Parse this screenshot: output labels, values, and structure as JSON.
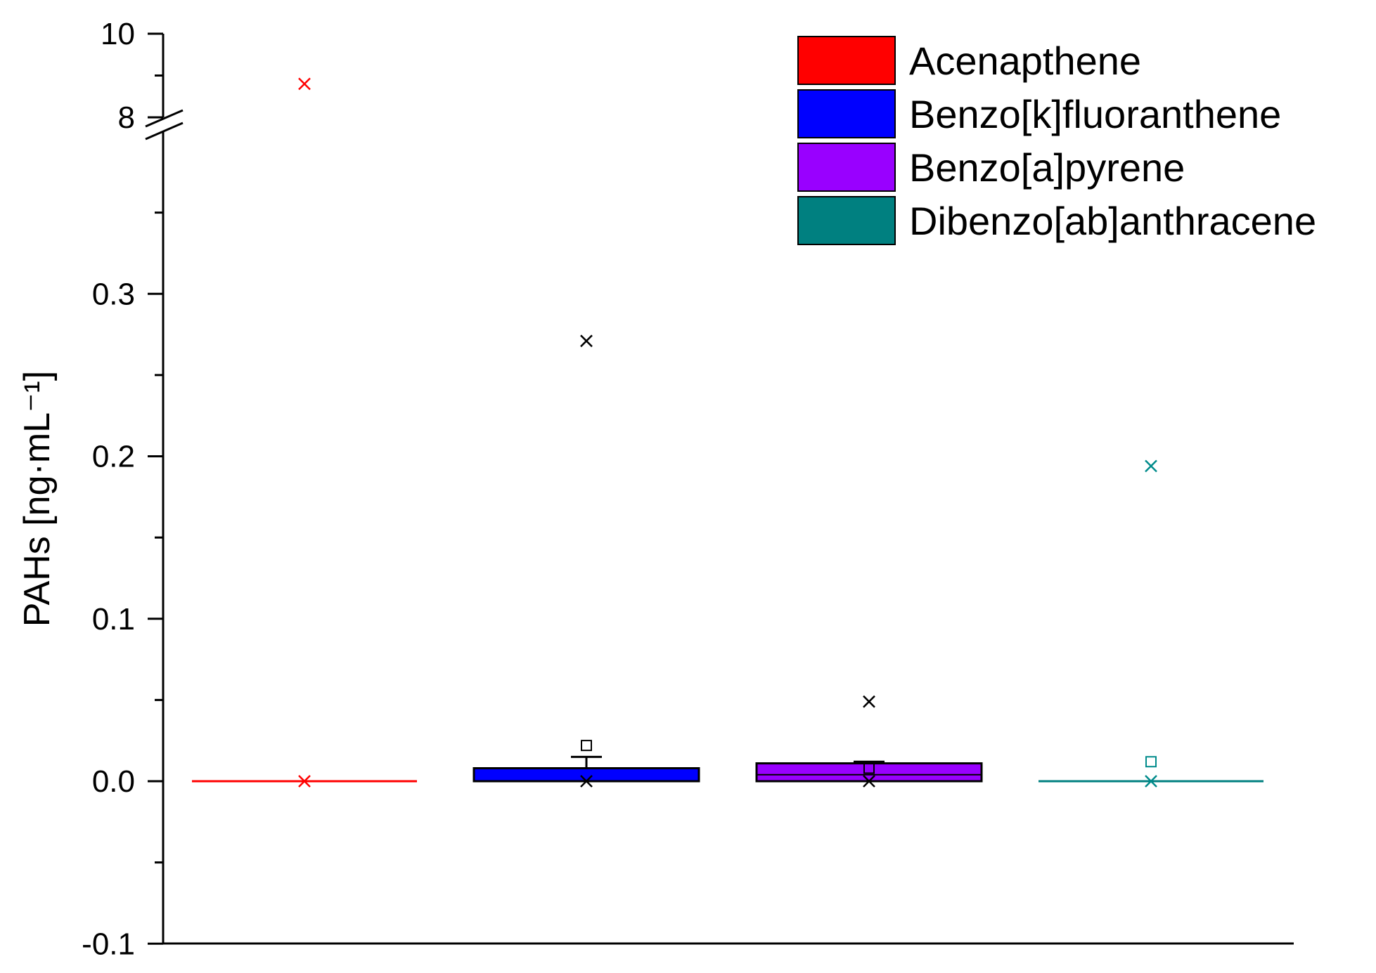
{
  "chart_data": {
    "type": "box",
    "ylabel": "PAHs [ng·mL⁻¹]",
    "y_axis": {
      "scale": "broken",
      "lower_range": [
        -0.1,
        0.4
      ],
      "upper_range": [
        8,
        10
      ],
      "tick_labels": [
        "-0.1",
        "0.0",
        "0.1",
        "0.2",
        "0.3",
        "8",
        "10"
      ]
    },
    "legend_position": "top-right",
    "series": [
      {
        "name": "Acenapthene",
        "color": "#ff0000",
        "marker_color": "#ff0000",
        "q1": 0.0,
        "median": 0.0,
        "q3": 0.0,
        "whisker_low": 0.0,
        "whisker_high": 0.0,
        "mean": null,
        "min_marker": 0.0,
        "max_marker": 8.8
      },
      {
        "name": "Benzo[k]fluoranthene",
        "color": "#0000ff",
        "marker_color": "#000000",
        "q1": 0.0,
        "median": 0.0,
        "q3": 0.008,
        "whisker_low": 0.0,
        "whisker_high": 0.015,
        "mean": 0.022,
        "min_marker": 0.0,
        "max_marker": 0.271
      },
      {
        "name": "Benzo[a]pyrene",
        "color": "#9900ff",
        "marker_color": "#000000",
        "q1": 0.0,
        "median": 0.004,
        "q3": 0.011,
        "whisker_low": 0.0,
        "whisker_high": 0.012,
        "mean": 0.008,
        "min_marker": 0.0,
        "max_marker": 0.049
      },
      {
        "name": "Dibenzo[ab]anthracene",
        "color": "#008080",
        "marker_color": "#008b8b",
        "q1": 0.0,
        "median": 0.0,
        "q3": 0.0,
        "whisker_low": 0.0,
        "whisker_high": 0.0,
        "mean": 0.012,
        "min_marker": 0.0,
        "max_marker": 0.194
      }
    ]
  }
}
